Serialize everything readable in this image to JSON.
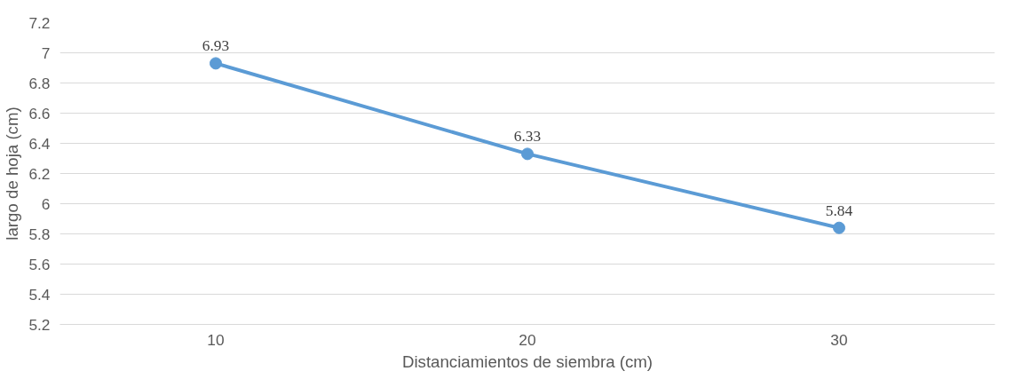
{
  "chart_data": {
    "type": "line",
    "xlabel": "Distanciamientos de siembra (cm)",
    "ylabel": "largo de hoja (cm)",
    "categories": [
      "10",
      "20",
      "30"
    ],
    "series": [
      {
        "color": "#5b9bd5",
        "values": [
          6.93,
          6.33,
          5.84
        ]
      }
    ],
    "ylim": [
      5.2,
      7.2
    ],
    "yticks": [
      5.2,
      5.4,
      5.6,
      5.8,
      6,
      6.2,
      6.4,
      6.6,
      6.8,
      7,
      7.2
    ],
    "grid": "y",
    "marker": "circle",
    "line_style": "solid",
    "data_labels": true
  }
}
